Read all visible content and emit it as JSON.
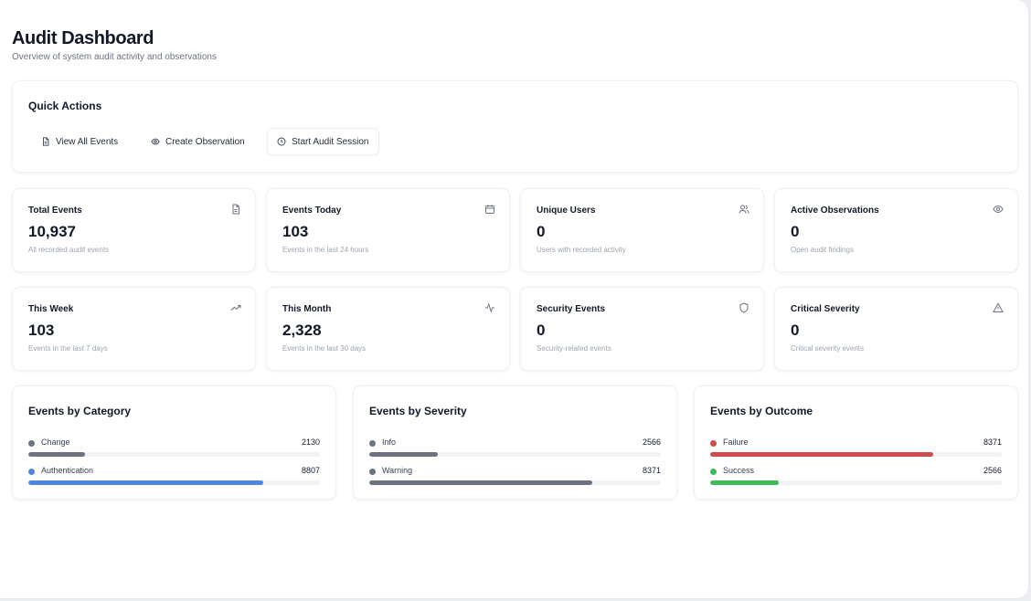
{
  "header": {
    "title": "Audit Dashboard",
    "subtitle": "Overview of system audit activity and observations"
  },
  "quick_actions": {
    "title": "Quick Actions",
    "buttons": [
      {
        "label": "View All Events",
        "icon": "file-icon"
      },
      {
        "label": "Create Observation",
        "icon": "eye-icon"
      },
      {
        "label": "Start Audit Session",
        "icon": "clock-icon"
      }
    ]
  },
  "stats": [
    {
      "label": "Total Events",
      "value": "10,937",
      "description": "All recorded audit events",
      "icon": "file-icon"
    },
    {
      "label": "Events Today",
      "value": "103",
      "description": "Events in the last 24 hours",
      "icon": "calendar-icon"
    },
    {
      "label": "Unique Users",
      "value": "0",
      "description": "Users with recorded activity",
      "icon": "users-icon"
    },
    {
      "label": "Active Observations",
      "value": "0",
      "description": "Open audit findings",
      "icon": "eye-icon"
    },
    {
      "label": "This Week",
      "value": "103",
      "description": "Events in the last 7 days",
      "icon": "trending-up-icon"
    },
    {
      "label": "This Month",
      "value": "2,328",
      "description": "Events in the last 30 days",
      "icon": "activity-icon"
    },
    {
      "label": "Security Events",
      "value": "0",
      "description": "Security-related events",
      "icon": "shield-icon"
    },
    {
      "label": "Critical Severity",
      "value": "0",
      "description": "Critical severity events",
      "icon": "alert-triangle-icon"
    }
  ],
  "breakdowns": [
    {
      "title": "Events by Category",
      "items": [
        {
          "name": "Change",
          "count": "2130",
          "fraction": 0.195,
          "color": "#6b7280"
        },
        {
          "name": "Authentication",
          "count": "8807",
          "fraction": 0.805,
          "color": "#4f86e0"
        }
      ]
    },
    {
      "title": "Events by Severity",
      "items": [
        {
          "name": "Info",
          "count": "2566",
          "fraction": 0.235,
          "color": "#6b7280"
        },
        {
          "name": "Warning",
          "count": "8371",
          "fraction": 0.765,
          "color": "#6b7280"
        }
      ]
    },
    {
      "title": "Events by Outcome",
      "items": [
        {
          "name": "Failure",
          "count": "8371",
          "fraction": 0.765,
          "color": "#cf4c4c"
        },
        {
          "name": "Success",
          "count": "2566",
          "fraction": 0.235,
          "color": "#3fba58"
        }
      ]
    }
  ]
}
